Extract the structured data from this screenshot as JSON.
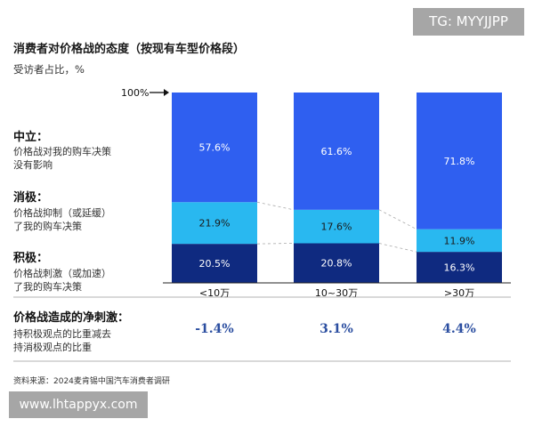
{
  "title": "消费者对价格战的态度（按现有车型价格段）",
  "subtitle": "受访者占比，%",
  "hundred_label": "100%",
  "categories_left": [
    {
      "head": "中立：",
      "desc": [
        "价格战对我的购车决策",
        "没有影响"
      ]
    },
    {
      "head": "消极：",
      "desc": [
        "价格战抑制（或延缓）",
        "了我的购车决策"
      ]
    },
    {
      "head": "积极：",
      "desc": [
        "价格战刺激（或加速）",
        "了我的购车决策"
      ]
    }
  ],
  "net": {
    "head": "价格战造成的净刺激：",
    "desc": [
      "持积极观点的比重减去",
      "持消极观点的比重"
    ],
    "values": [
      "-1.4%",
      "3.1%",
      "4.4%"
    ]
  },
  "source": "资料来源：2024麦肯锡中国汽车消费者调研",
  "watermark_top": "TG: MYYJJPP",
  "watermark_bottom": "www.lhtappyx.com",
  "colors": {
    "neutral": "#2f5ff0",
    "negative": "#29b8f0",
    "positive": "#0f2a80",
    "label_dark": "#1a1a1a",
    "label_light": "#ffffff"
  },
  "chart_data": {
    "type": "bar",
    "stacked": true,
    "categories": [
      "<10万",
      "10~30万",
      ">30万"
    ],
    "series": [
      {
        "name": "积极",
        "values": [
          20.5,
          20.8,
          16.3
        ]
      },
      {
        "name": "消极",
        "values": [
          21.9,
          17.6,
          11.9
        ]
      },
      {
        "name": "中立",
        "values": [
          57.6,
          61.6,
          71.8
        ]
      }
    ],
    "labels": [
      [
        "20.5%",
        "20.8%",
        "16.3%"
      ],
      [
        "21.9%",
        "17.6%",
        "11.9%"
      ],
      [
        "57.6%",
        "61.6%",
        "71.8%"
      ]
    ],
    "ylim": [
      0,
      100
    ],
    "grid": false
  }
}
